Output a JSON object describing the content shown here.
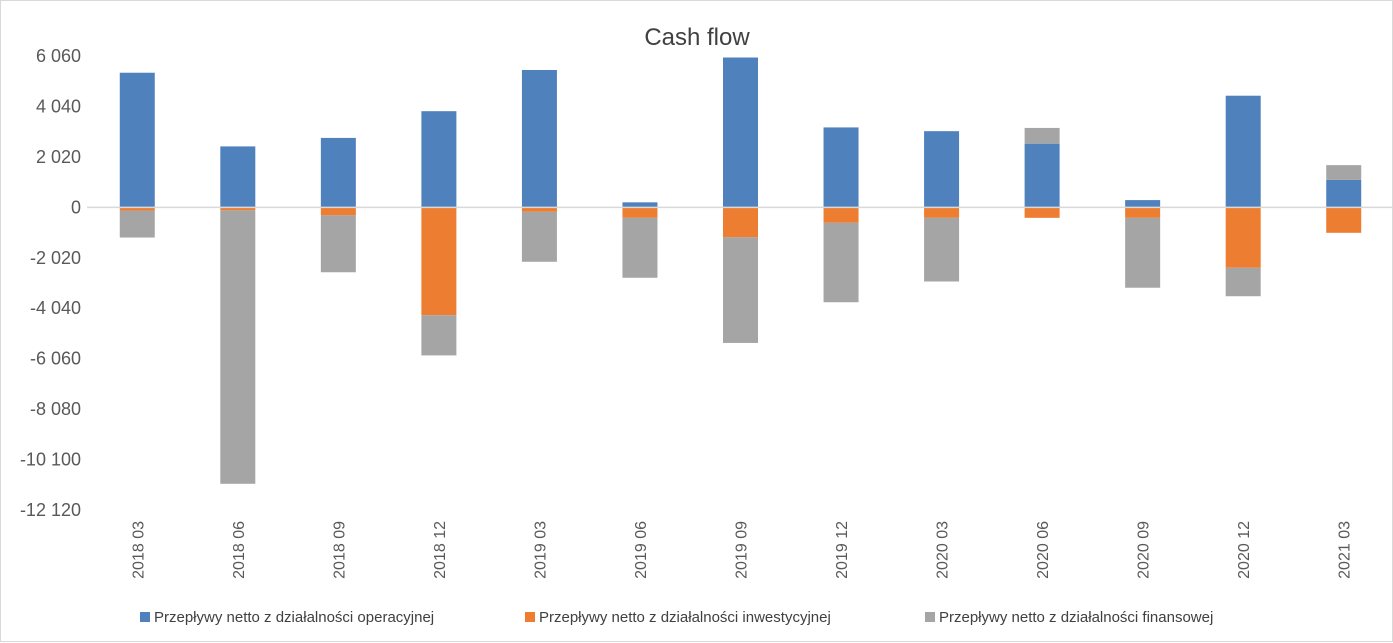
{
  "chart_data": {
    "type": "bar",
    "stacked": true,
    "title": "Cash flow",
    "xlabel": "",
    "ylabel": "",
    "categories": [
      "2018 03",
      "2018 06",
      "2018 09",
      "2018 12",
      "2019 03",
      "2019 06",
      "2019 09",
      "2019 12",
      "2020 03",
      "2020 06",
      "2020 09",
      "2020 12",
      "2021 03"
    ],
    "series": [
      {
        "name": "Przepływy netto z działalności operacyjnej",
        "color": "#4f81bd",
        "values": [
          5390,
          2440,
          2780,
          3850,
          5500,
          200,
          6000,
          3200,
          3050,
          2550,
          290,
          4470,
          1100
        ]
      },
      {
        "name": "Przepływy netto z działalności inwestycyjnej",
        "color": "#ed7d31",
        "values": [
          -130,
          -120,
          -320,
          -4320,
          -180,
          -420,
          -1200,
          -620,
          -420,
          -420,
          -420,
          -2420,
          -1020
        ]
      },
      {
        "name": "Przepływy netto z działalności finansowej",
        "color": "#a5a5a5",
        "values": [
          -1080,
          -10950,
          -2280,
          -1610,
          -2000,
          -2400,
          -4230,
          -3180,
          -2550,
          630,
          -2800,
          -1140,
          590
        ]
      }
    ],
    "ylim": [
      -12120,
      6060
    ],
    "yticks": [
      6060,
      4040,
      2020,
      0,
      -2020,
      -4040,
      -6060,
      -8080,
      -10100,
      -12120
    ],
    "ytick_labels": [
      "6 060",
      "4 040",
      "2 020",
      "0",
      "-2 020",
      "-4 040",
      "-6 060",
      "-8 080",
      "-10 100",
      "-12 120"
    ],
    "grid": false,
    "legend_position": "bottom"
  }
}
